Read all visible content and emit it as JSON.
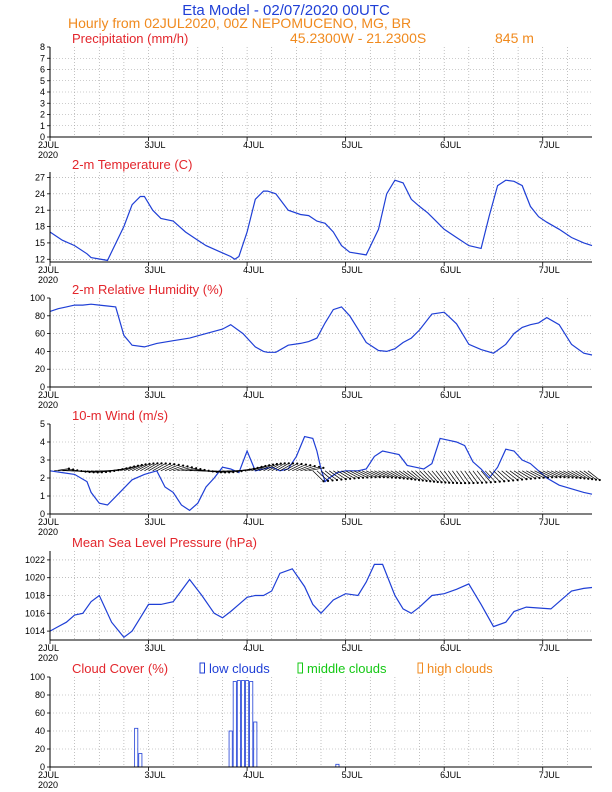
{
  "header": {
    "title": "Eta Model - 02/07/2020 00UTC",
    "subtitle": "Hourly from 02JUL2020, 00Z  NEPOMUCENO, MG, BR",
    "coords": "45.2300W - 21.2300S",
    "elevation": "845  m"
  },
  "colors": {
    "series": "#1f3fd6",
    "title": "#e3262c",
    "header_blue": "#1f3fd6",
    "header_orange": "#f08a1e",
    "legend_mid": "#14c814"
  },
  "x_axis": {
    "tick_labels": [
      "2JUL",
      "3JUL",
      "4JUL",
      "5JUL",
      "6JUL",
      "7JUL"
    ],
    "year_label": "2020",
    "range_hours": [
      0,
      132
    ]
  },
  "chart_data": [
    {
      "id": "precip",
      "type": "bar",
      "title": "Precipitation (mm/h)",
      "ylim": [
        0,
        8
      ],
      "yticks": [
        "0",
        "1",
        "2",
        "3",
        "4",
        "5",
        "6",
        "7",
        "8"
      ],
      "x": [],
      "values": []
    },
    {
      "id": "temp",
      "type": "line",
      "title": "2-m Temperature (C)",
      "ylim": [
        11.5,
        28
      ],
      "yticks": [
        "12",
        "15",
        "18",
        "21",
        "24",
        "27"
      ],
      "x": [
        0,
        3,
        6,
        9,
        10,
        14,
        18,
        20,
        22,
        23,
        25,
        27,
        30,
        33,
        36,
        38,
        41,
        44,
        45,
        46,
        48,
        50,
        52,
        53,
        55,
        58,
        61,
        63,
        65,
        67,
        69,
        71,
        73,
        77,
        80,
        82,
        84,
        86,
        88,
        90,
        92,
        94,
        96,
        99,
        102,
        105,
        107,
        109,
        111,
        113,
        115,
        117,
        119,
        121,
        124,
        127,
        130,
        132
      ],
      "values": [
        17,
        15.5,
        14.5,
        13,
        12.3,
        11.8,
        18,
        22,
        23.5,
        23.5,
        21,
        19.5,
        19,
        17,
        15.5,
        14.5,
        13.5,
        12.5,
        12,
        12.5,
        17,
        23,
        24.5,
        24.5,
        24,
        21,
        20.2,
        20,
        19,
        18.6,
        17,
        14.5,
        13.3,
        12.8,
        17.5,
        24,
        26.5,
        26,
        23,
        21.7,
        20.5,
        19,
        17.5,
        16,
        14.5,
        14,
        20,
        25.5,
        26.5,
        26.3,
        25.5,
        21.7,
        19.8,
        18.8,
        17.5,
        16,
        15,
        14.5
      ]
    },
    {
      "id": "rh",
      "type": "line",
      "title": "2-m Relative Humidity (%)",
      "ylim": [
        0,
        100
      ],
      "yticks": [
        "0",
        "20",
        "40",
        "60",
        "80",
        "100"
      ],
      "x": [
        0,
        2,
        4,
        6,
        8,
        10,
        12,
        14,
        16,
        18,
        20,
        23,
        26,
        30,
        34,
        38,
        42,
        44,
        47,
        50,
        52,
        53,
        55,
        58,
        61,
        63,
        65,
        67,
        69,
        71,
        73,
        75,
        77,
        80,
        82,
        84,
        86,
        88,
        90,
        93,
        96,
        99,
        102,
        105,
        108,
        111,
        113,
        115,
        117,
        119,
        121,
        124,
        127,
        130,
        132
      ],
      "values": [
        85,
        88,
        90,
        92,
        92,
        93,
        92,
        91,
        90,
        58,
        47,
        45,
        49,
        52,
        55,
        60,
        65,
        70,
        60,
        45,
        40,
        39,
        39,
        47,
        49,
        51,
        55,
        72,
        87,
        90,
        80,
        65,
        50,
        41,
        40,
        43,
        50,
        55,
        64,
        82,
        84,
        71,
        48,
        42,
        38,
        48,
        60,
        67,
        70,
        72,
        78,
        70,
        48,
        38,
        36
      ]
    },
    {
      "id": "wind",
      "type": "line",
      "title": "10-m Wind (m/s)",
      "ylim": [
        0,
        5
      ],
      "yticks": [
        "0",
        "1",
        "2",
        "3",
        "4",
        "5"
      ],
      "x": [
        0,
        3,
        6,
        9,
        10,
        12,
        14,
        17,
        20,
        23,
        26,
        28,
        30,
        32,
        34,
        36,
        38,
        40,
        42,
        44,
        46,
        48,
        50,
        52,
        54,
        56,
        58,
        60,
        62,
        64,
        65,
        66,
        67,
        68,
        70,
        72,
        75,
        77,
        79,
        81,
        83,
        85,
        87,
        89,
        91,
        93,
        95,
        97,
        99,
        101,
        103,
        105,
        107,
        109,
        111,
        113,
        115,
        117,
        119,
        121,
        124,
        127,
        130,
        132
      ],
      "values": [
        2.4,
        2.3,
        2.2,
        1.8,
        1.2,
        0.6,
        0.5,
        1.2,
        1.9,
        2.2,
        2.4,
        1.5,
        1.2,
        0.5,
        0.2,
        0.6,
        1.5,
        2.0,
        2.6,
        2.5,
        2.3,
        3.5,
        2.4,
        2.5,
        2.6,
        2.4,
        2.5,
        3.2,
        4.3,
        4.2,
        3.5,
        2.5,
        1.8,
        2.0,
        2.3,
        2.4,
        2.4,
        2.5,
        3.2,
        3.5,
        3.4,
        3.3,
        2.7,
        2.6,
        2.5,
        2.8,
        4.2,
        4.1,
        4.0,
        3.8,
        2.9,
        2.5,
        2.0,
        2.6,
        3.6,
        3.5,
        3.0,
        2.8,
        2.4,
        2.0,
        1.6,
        1.4,
        1.2,
        1.1
      ]
    },
    {
      "id": "mslp",
      "type": "line",
      "title": "Mean Sea Level Pressure (hPa)",
      "ylim": [
        1013,
        1023
      ],
      "yticks": [
        "1014",
        "1016",
        "1018",
        "1020",
        "1022"
      ],
      "x": [
        0,
        2,
        4,
        6,
        8,
        10,
        12,
        15,
        18,
        20,
        22,
        24,
        27,
        30,
        34,
        37,
        40,
        42,
        44,
        46,
        48,
        50,
        52,
        54,
        56,
        59,
        62,
        64,
        66,
        69,
        72,
        75,
        77,
        79,
        81,
        84,
        86,
        88,
        90,
        93,
        96,
        99,
        102,
        105,
        108,
        111,
        113,
        116,
        119,
        122,
        124,
        127,
        130,
        132
      ],
      "values": [
        1014,
        1014.5,
        1015,
        1015.8,
        1016,
        1017.3,
        1018,
        1015,
        1013.3,
        1014,
        1015.5,
        1017,
        1017,
        1017.3,
        1019.8,
        1018,
        1016,
        1015.5,
        1016.2,
        1017,
        1017.8,
        1018,
        1018,
        1018.5,
        1020.5,
        1021,
        1019,
        1017,
        1016,
        1017.5,
        1018.2,
        1018,
        1019.5,
        1021.5,
        1021.5,
        1018,
        1016.5,
        1016,
        1016.7,
        1018,
        1018.2,
        1018.7,
        1019.3,
        1017,
        1014.5,
        1015,
        1016.2,
        1016.7,
        1016.6,
        1016.5,
        1017.3,
        1018.5,
        1018.8,
        1018.9
      ]
    },
    {
      "id": "cloud",
      "type": "bar",
      "title": "Cloud Cover (%)",
      "ylim": [
        0,
        100
      ],
      "yticks": [
        "0",
        "20",
        "40",
        "60",
        "80",
        "100"
      ],
      "legend": [
        "low clouds",
        "middle clouds",
        "high clouds"
      ],
      "x": [
        21,
        22,
        44,
        45,
        46,
        47,
        48,
        49,
        50,
        70
      ],
      "values": [
        43,
        15,
        40,
        95,
        96,
        96,
        96,
        95,
        50,
        3
      ]
    }
  ]
}
